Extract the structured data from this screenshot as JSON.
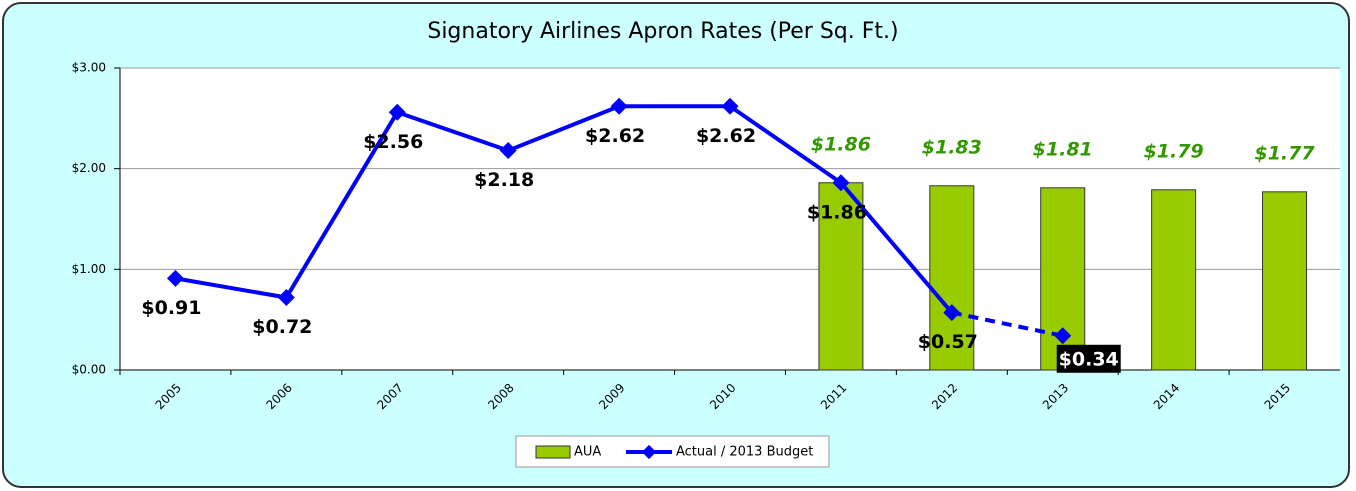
{
  "chart_data": {
    "type": "bar+line",
    "title": "Signatory Airlines Apron Rates (Per Sq. Ft.)",
    "categories": [
      "2005",
      "2006",
      "2007",
      "2008",
      "2009",
      "2010",
      "2011",
      "2012",
      "2013",
      "2014",
      "2015"
    ],
    "series": [
      {
        "name": "AUA",
        "type": "bar",
        "color": "#99cc00",
        "values": [
          null,
          null,
          null,
          null,
          null,
          null,
          1.86,
          1.83,
          1.81,
          1.79,
          1.77
        ],
        "value_labels": [
          null,
          null,
          null,
          null,
          null,
          null,
          "$1.86",
          "$1.83",
          "$1.81",
          "$1.79",
          "$1.77"
        ]
      },
      {
        "name": "Actual / 2013 Budget",
        "type": "line",
        "color": "#0000ff",
        "dash_from_index": 7,
        "values": [
          0.91,
          0.72,
          2.56,
          2.18,
          2.62,
          2.62,
          1.86,
          0.57,
          0.34,
          null,
          null
        ],
        "value_labels": [
          "$0.91",
          "$0.72",
          "$2.56",
          "$2.18",
          "$2.62",
          "$2.62",
          "$1.86",
          "$0.57",
          "$0.34",
          null,
          null
        ]
      }
    ],
    "ylim": [
      0,
      3
    ],
    "yticks": [
      {
        "value": 0,
        "label": "$0.00"
      },
      {
        "value": 1,
        "label": "$1.00"
      },
      {
        "value": 2,
        "label": "$2.00"
      },
      {
        "value": 3,
        "label": "$3.00"
      }
    ],
    "grid": true,
    "legend": "bottom"
  }
}
